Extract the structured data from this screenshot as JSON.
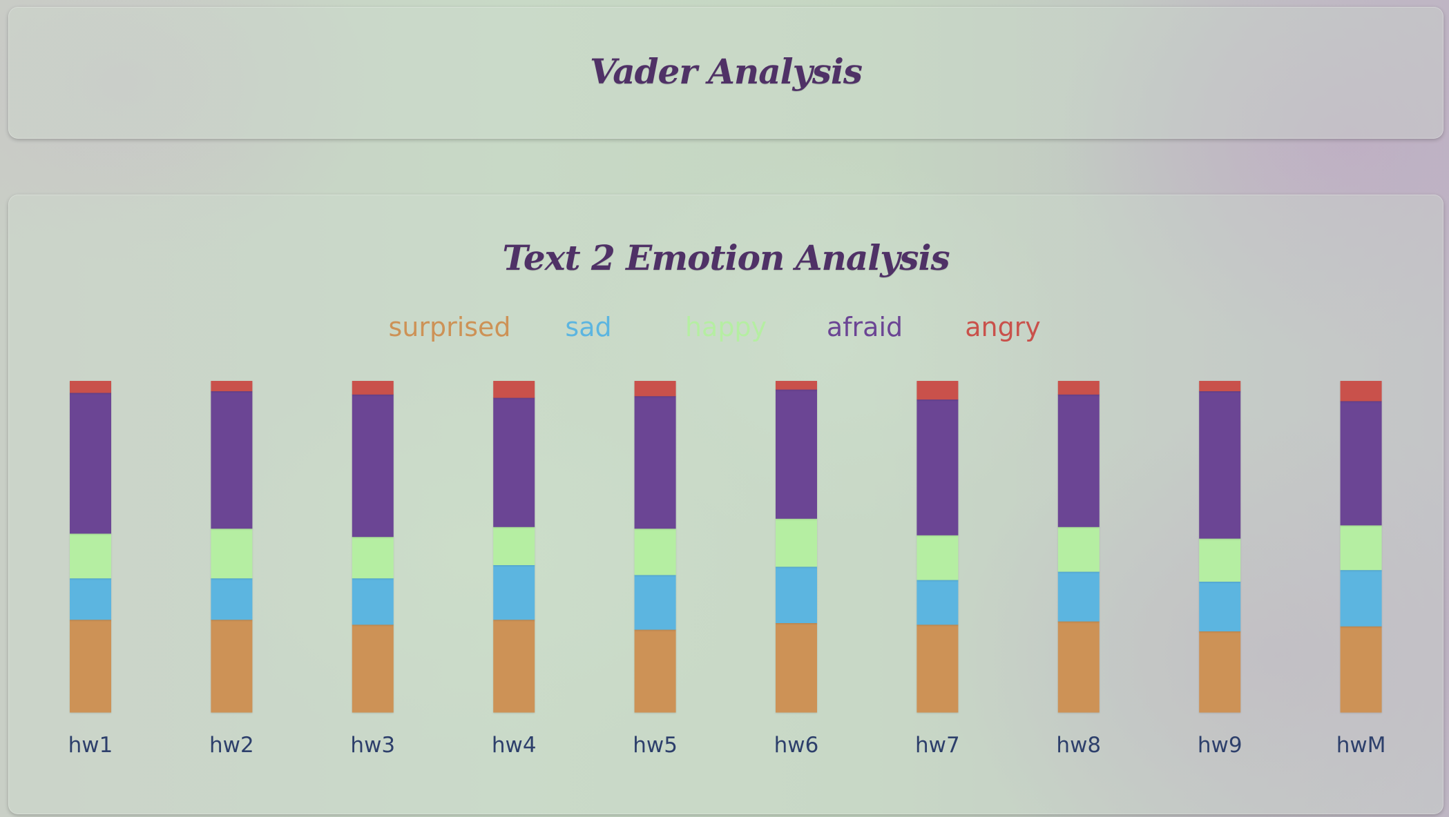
{
  "header": {
    "title": "Vader Analysis"
  },
  "chart_data": {
    "type": "bar",
    "stacked": true,
    "title": "Text 2 Emotion Analysis",
    "xlabel": "",
    "ylabel": "",
    "ylim": [
      0,
      1
    ],
    "grid": false,
    "legend_position": "top-center",
    "categories": [
      "hw1",
      "hw2",
      "hw3",
      "hw4",
      "hw5",
      "hw6",
      "hw7",
      "hw8",
      "hw9",
      "hwM"
    ],
    "series": [
      {
        "name": "surprised",
        "color": "#cd9256",
        "values": [
          0.28,
          0.28,
          0.265,
          0.28,
          0.25,
          0.27,
          0.265,
          0.275,
          0.245,
          0.26
        ]
      },
      {
        "name": "sad",
        "color": "#5cb5e0",
        "values": [
          0.125,
          0.125,
          0.14,
          0.165,
          0.165,
          0.17,
          0.135,
          0.15,
          0.15,
          0.17
        ]
      },
      {
        "name": "happy",
        "color": "#b5eea2",
        "values": [
          0.135,
          0.15,
          0.125,
          0.115,
          0.14,
          0.145,
          0.135,
          0.135,
          0.13,
          0.135
        ]
      },
      {
        "name": "afraid",
        "color": "#6b4594",
        "values": [
          0.425,
          0.415,
          0.43,
          0.39,
          0.4,
          0.39,
          0.41,
          0.4,
          0.445,
          0.375
        ]
      },
      {
        "name": "angry",
        "color": "#c9514b",
        "values": [
          0.035,
          0.03,
          0.04,
          0.05,
          0.045,
          0.025,
          0.055,
          0.04,
          0.03,
          0.06
        ]
      }
    ]
  }
}
